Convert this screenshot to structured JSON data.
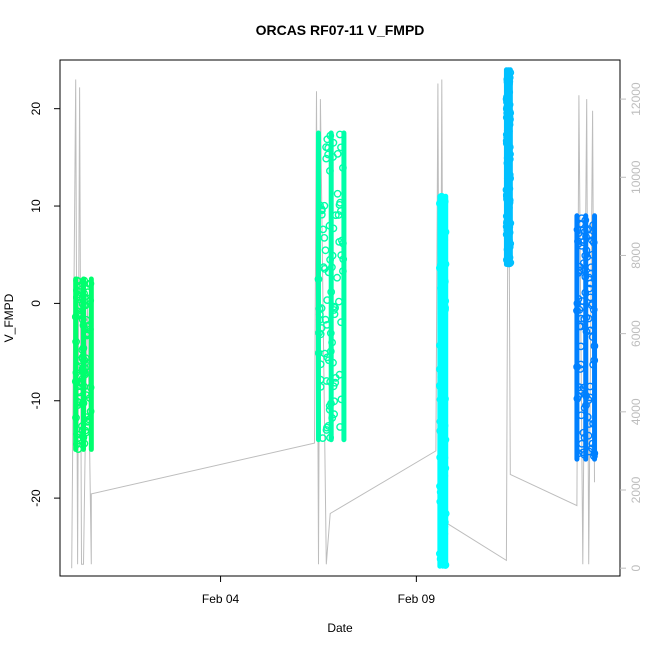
{
  "chart_data": {
    "type": "scatter",
    "title": "ORCAS RF07-11 V_FMPD",
    "xlabel": "Date",
    "ylabel": "V_FMPD",
    "xlim": [
      0.1,
      14.4
    ],
    "ylim": [
      -28,
      25
    ],
    "y_ticks": [
      -20,
      -10,
      0,
      10,
      20
    ],
    "x_ticks": [
      {
        "value": 4.2,
        "label": "Feb 04"
      },
      {
        "value": 9.2,
        "label": "Feb 09"
      }
    ],
    "y2_range": [
      -200,
      13000
    ],
    "y2_ticks": [
      0,
      2000,
      4000,
      6000,
      8000,
      10000,
      12000
    ],
    "grid": false,
    "legend": "none",
    "colors": {
      "altitude_trace": "#bdbdbd",
      "flight_1": "#00ff6e",
      "flight_2": "#00ffa8",
      "flight_3": "#00ffff",
      "flight_4": "#00c0ff",
      "flight_5": "#0080ff",
      "axis": "#000000",
      "secondary_axis": "#bdbdbd"
    },
    "series": [
      {
        "x_range": [
          0.5,
          0.9
        ],
        "y_min": -15,
        "y_max": 2.5,
        "color_key": "flight_1"
      },
      {
        "x_range": [
          6.7,
          7.35
        ],
        "y_min": -14,
        "y_max": 17.5,
        "color_key": "flight_2"
      },
      {
        "x_range": [
          9.8,
          9.95
        ],
        "y_min": -27,
        "y_max": 11,
        "color_key": "flight_3"
      },
      {
        "x_range": [
          11.5,
          11.6
        ],
        "y_min": 4,
        "y_max": 24,
        "color_key": "flight_4"
      },
      {
        "x_range": [
          13.3,
          13.75
        ],
        "y_min": -16,
        "y_max": 9,
        "color_key": "flight_5"
      }
    ],
    "altitude_trace": [
      [
        0.4,
        0.0
      ],
      [
        0.5,
        12500
      ],
      [
        0.55,
        100
      ],
      [
        0.6,
        12300
      ],
      [
        0.65,
        100
      ],
      [
        0.7,
        100
      ],
      [
        0.8,
        7000
      ],
      [
        0.9,
        100
      ],
      [
        0.9,
        1900
      ],
      [
        6.6,
        3200
      ],
      [
        6.65,
        12200
      ],
      [
        6.7,
        100
      ],
      [
        6.75,
        12000
      ],
      [
        6.9,
        100
      ],
      [
        7.0,
        1400
      ],
      [
        9.7,
        3000
      ],
      [
        9.75,
        12400
      ],
      [
        9.8,
        100
      ],
      [
        9.85,
        12500
      ],
      [
        9.9,
        100
      ],
      [
        9.9,
        1200
      ],
      [
        11.5,
        200
      ],
      [
        11.55,
        12600
      ],
      [
        11.6,
        2400
      ],
      [
        13.3,
        1600
      ],
      [
        13.35,
        12100
      ],
      [
        13.45,
        100
      ],
      [
        13.55,
        12000
      ],
      [
        13.6,
        100
      ],
      [
        13.7,
        11700
      ],
      [
        13.75,
        2200
      ]
    ]
  }
}
